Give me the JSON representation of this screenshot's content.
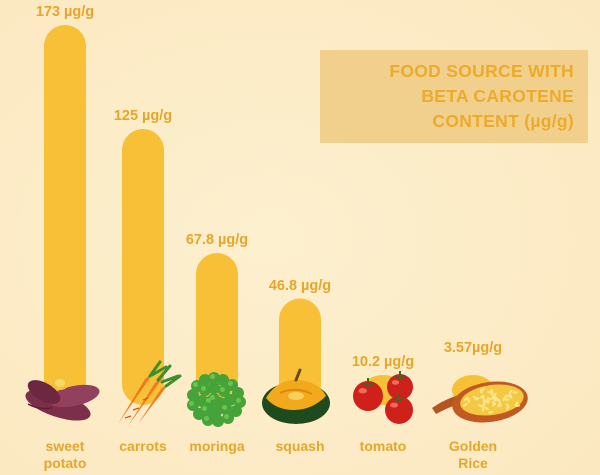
{
  "colors": {
    "background": "#fbe8c0",
    "bar": "#f7c036",
    "title_box": "#f1cf8c",
    "title_text": "#ecab2a",
    "value_text": "#e6a629",
    "category_text": "#e6a629"
  },
  "title": {
    "line1": "FOOD SOURCE WITH",
    "line2": "BETA CAROTENE",
    "line3": "CONTENT (µg/g)"
  },
  "chart_data": {
    "type": "bar",
    "title": "FOOD SOURCE WITH BETA CAROTENE CONTENT (µg/g)",
    "xlabel": "",
    "ylabel": "",
    "unit": "µg/g",
    "grid": false,
    "legend": "none",
    "ylim": [
      0,
      173
    ],
    "categories": [
      "sweet potato",
      "carrots",
      "moringa",
      "squash",
      "tomato",
      "Golden Rice"
    ],
    "values": [
      173,
      125,
      67.8,
      46.8,
      10.2,
      3.57
    ],
    "category_labels": [
      {
        "line1": "sweet",
        "line2": "potato"
      },
      {
        "line1": "carrots",
        "line2": ""
      },
      {
        "line1": "moringa",
        "line2": ""
      },
      {
        "line1": "squash",
        "line2": ""
      },
      {
        "line1": "tomato",
        "line2": ""
      },
      {
        "line1": "Golden",
        "line2": "Rice"
      }
    ],
    "value_labels": [
      "173 µg/g",
      "125 µg/g",
      "67.8 µg/g",
      "46.8 µg/g",
      "10.2 µg/g",
      "3.57µg/g"
    ],
    "icons": [
      "sweet-potato-icon",
      "carrots-icon",
      "moringa-icon",
      "squash-icon",
      "tomato-icon",
      "golden-rice-icon"
    ]
  }
}
